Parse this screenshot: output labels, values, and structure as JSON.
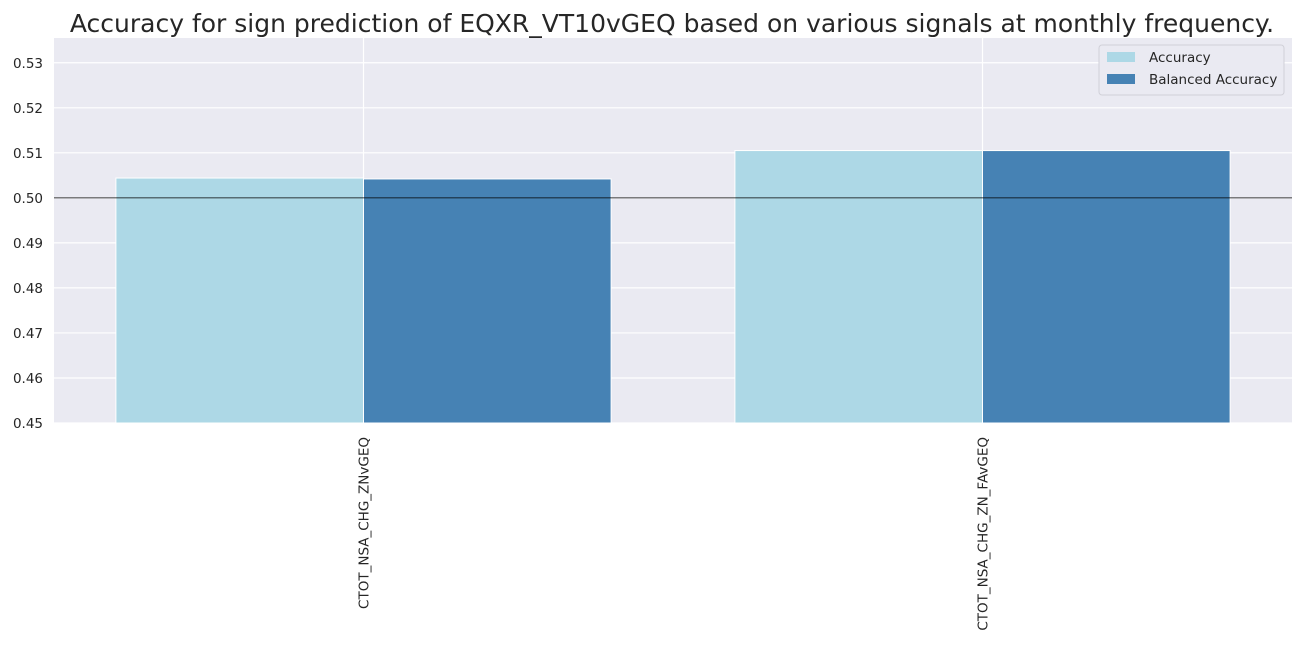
{
  "chart_data": {
    "type": "bar",
    "title": "Accuracy for sign prediction of EQXR_VT10vGEQ based on various signals at monthly frequency.",
    "categories": [
      "CTOT_NSA_CHG_ZNvGEQ",
      "CTOT_NSA_CHG_ZN_FAvGEQ"
    ],
    "series": [
      {
        "name": "Accuracy",
        "values": [
          0.5044,
          0.5105
        ],
        "color": "#add8e6"
      },
      {
        "name": "Balanced Accuracy",
        "values": [
          0.5042,
          0.5105
        ],
        "color": "#4682b4"
      }
    ],
    "ylim": [
      0.45,
      0.5355
    ],
    "yticks": [
      0.45,
      0.46,
      0.47,
      0.48,
      0.49,
      0.5,
      0.51,
      0.52,
      0.53
    ],
    "ytick_labels": [
      "0.45",
      "0.46",
      "0.47",
      "0.48",
      "0.49",
      "0.50",
      "0.51",
      "0.52",
      "0.53"
    ],
    "reference_line": 0.5,
    "xlabel": "",
    "ylabel": "",
    "grid": true,
    "legend_position": "top-right",
    "colors": {
      "plot_background": "#eaeaf2",
      "grid": "#ffffff",
      "reference_line": "#000000"
    }
  }
}
